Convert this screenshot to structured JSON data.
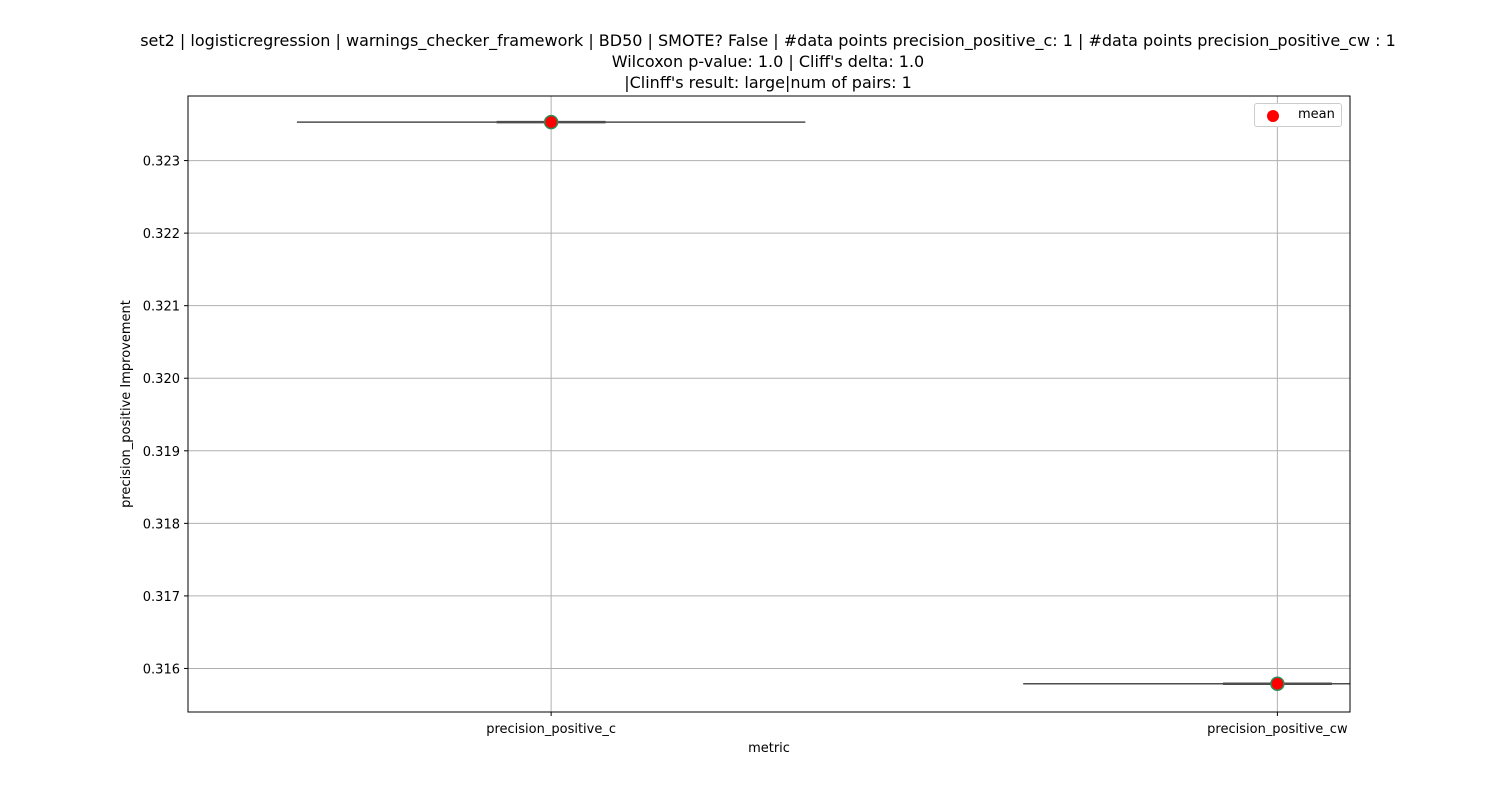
{
  "chart_data": {
    "type": "box",
    "title_lines": [
      "set2 | logisticregression | warnings_checker_framework | BD50 | SMOTE? False | #data points precision_positive_c: 1 | #data points precision_positive_cw : 1",
      "Wilcoxon p-value: 1.0 | Cliff's delta: 1.0",
      "|Clinff's result: large|num of pairs: 1"
    ],
    "xlabel": "metric",
    "ylabel": "precision_positive Improvement",
    "categories": [
      "precision_positive_c",
      "precision_positive_cw"
    ],
    "values": [
      0.32353,
      0.31579
    ],
    "means": [
      0.32353,
      0.31579
    ],
    "ylim": [
      0.3154,
      0.32389
    ],
    "yticks": [
      0.316,
      0.317,
      0.318,
      0.319,
      0.32,
      0.321,
      0.322,
      0.323
    ],
    "ytick_labels": [
      "0.316",
      "0.317",
      "0.318",
      "0.319",
      "0.320",
      "0.321",
      "0.322",
      "0.323"
    ],
    "grid": true,
    "legend": {
      "placement": "top-right",
      "entries": [
        {
          "label": "mean",
          "color": "#ff0000"
        }
      ]
    },
    "colors": {
      "mean_fill": "#ff0000",
      "mean_edge": "#2e8b57",
      "box_line": "#4d4d4d",
      "grid": "#b0b0b0"
    }
  }
}
